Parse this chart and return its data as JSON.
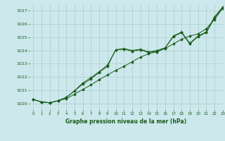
{
  "title": "Graphe pression niveau de la mer (hPa)",
  "bg_color": "#cce8ec",
  "grid_color": "#aacccc",
  "line_color": "#1a5c1a",
  "xlim": [
    -0.5,
    23
  ],
  "ylim": [
    1019.5,
    1027.5
  ],
  "yticks": [
    1020,
    1021,
    1022,
    1023,
    1024,
    1025,
    1026,
    1027
  ],
  "xticks": [
    0,
    1,
    2,
    3,
    4,
    5,
    6,
    7,
    8,
    9,
    10,
    11,
    12,
    13,
    14,
    15,
    16,
    17,
    18,
    19,
    20,
    21,
    22,
    23
  ],
  "series1": [
    1020.3,
    1020.1,
    1020.05,
    1020.2,
    1020.35,
    1020.7,
    1021.05,
    1021.4,
    1021.8,
    1022.15,
    1022.5,
    1022.8,
    1023.15,
    1023.5,
    1023.75,
    1023.9,
    1024.15,
    1024.5,
    1024.85,
    1025.1,
    1025.25,
    1025.65,
    1026.35,
    1027.2
  ],
  "series2": [
    1020.3,
    1020.1,
    1020.05,
    1020.2,
    1020.45,
    1020.95,
    1021.45,
    1021.85,
    1022.35,
    1022.8,
    1024.05,
    1024.1,
    1023.95,
    1024.05,
    1023.85,
    1023.95,
    1024.2,
    1025.05,
    1025.35,
    1024.5,
    1025.05,
    1025.35,
    1026.45,
    1027.25
  ],
  "series3": [
    1020.3,
    1020.1,
    1020.05,
    1020.2,
    1020.45,
    1020.95,
    1021.55,
    1021.95,
    1022.4,
    1022.9,
    1024.05,
    1024.15,
    1024.0,
    1024.1,
    1023.9,
    1024.0,
    1024.2,
    1025.1,
    1025.4,
    1024.55,
    1025.1,
    1025.4,
    1026.55,
    1027.3
  ]
}
